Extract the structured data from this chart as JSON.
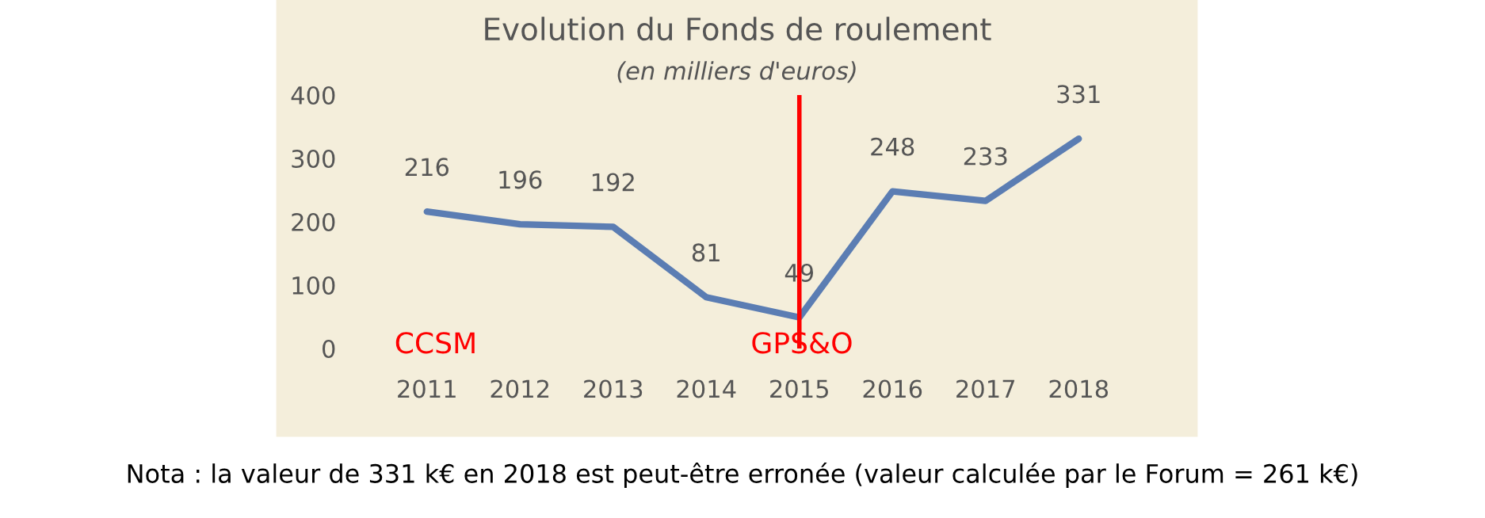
{
  "chart_data": {
    "type": "line",
    "title": "Evolution du Fonds de roulement",
    "subtitle": "(en milliers d'euros)",
    "categories": [
      "2011",
      "2012",
      "2013",
      "2014",
      "2015",
      "2016",
      "2017",
      "2018"
    ],
    "series": [
      {
        "color": "#5b7db3",
        "values": [
          216,
          196,
          192,
          81,
          49,
          248,
          233,
          331
        ]
      }
    ],
    "ylim": [
      0,
      400
    ],
    "yticks": [
      0,
      100,
      200,
      300,
      400
    ],
    "grid": false,
    "marker": "none",
    "line_style": "solid",
    "data_labels": true,
    "ref_lines": [
      {
        "axis": "x",
        "value": "2015",
        "color": "#ff0000",
        "line_style": "solid"
      }
    ],
    "annotations": [
      "CCSM",
      "GPS&O",
      "Nota : la valeur de 331 k€ en 2018 est peut-être erronée (valeur calculée par le Forum = 261 k€)"
    ]
  }
}
